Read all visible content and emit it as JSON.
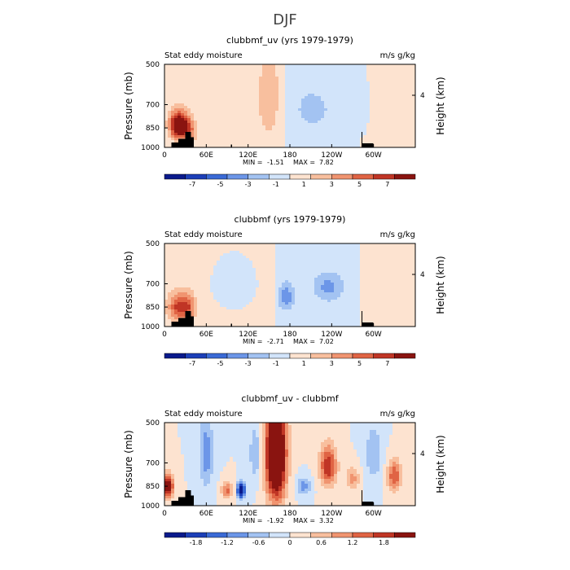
{
  "title": "DJF",
  "colors": {
    "neg": [
      "#0a1a8c",
      "#1c3fb8",
      "#3a6ad6",
      "#6c96e8",
      "#a3c3f2",
      "#d2e4fa"
    ],
    "pos": [
      "#fde3d0",
      "#f8bf9e",
      "#f09470",
      "#e06444",
      "#c03525",
      "#8a1410"
    ],
    "terrain": "#000000"
  },
  "chart_data": [
    {
      "type": "heatmap",
      "title": "clubbmf_uv (yrs 1979-1979)",
      "left_label": "Stat eddy moisture",
      "right_label": "m/s g/kg",
      "ylabel": "Pressure  (mb)",
      "ylabel_right": "Height  (km)",
      "yticks": [
        "500",
        "700",
        "850",
        "1000"
      ],
      "ytick_values": [
        500,
        700,
        850,
        1000
      ],
      "height_tick": "4",
      "xticks": [
        "0",
        "60E",
        "120E",
        "180",
        "120W",
        "60W"
      ],
      "xtick_values": [
        0,
        60,
        120,
        180,
        240,
        300
      ],
      "xlim": [
        0,
        360
      ],
      "ylim": [
        1000,
        500
      ],
      "min_label": "MIN =",
      "min_value": "-1.51",
      "max_label": "MAX =",
      "max_value": "7.82",
      "colorbar_labels": [
        "-7",
        "-5",
        "-3",
        "-1",
        "1",
        "3",
        "5",
        "7"
      ],
      "levels": [
        -8,
        -7,
        -6,
        -5,
        -4,
        -3,
        -2,
        -1,
        0,
        1,
        2,
        3,
        4,
        5,
        6,
        7,
        8
      ],
      "blobs": [
        {
          "lon": 20,
          "p": 830,
          "wl": 12,
          "wp": 90,
          "a": 7.5
        },
        {
          "lon": 35,
          "p": 870,
          "wl": 10,
          "wp": 100,
          "a": 3.0
        },
        {
          "lon": 150,
          "p": 650,
          "wl": 15,
          "wp": 250,
          "a": 1.6
        },
        {
          "lon": 100,
          "p": 700,
          "wl": 30,
          "wp": 200,
          "a": 0.7
        },
        {
          "lon": 210,
          "p": 730,
          "wl": 20,
          "wp": 100,
          "a": -1.3
        },
        {
          "lon": 265,
          "p": 700,
          "wl": 40,
          "wp": 250,
          "a": -0.6
        },
        {
          "lon": 330,
          "p": 700,
          "wl": 30,
          "wp": 200,
          "a": 0.7
        }
      ],
      "bias": 0.2,
      "neg_lon": [
        175,
        280
      ],
      "neg_val": -0.5
    },
    {
      "type": "heatmap",
      "title": "clubbmf (yrs 1979-1979)",
      "left_label": "Stat eddy moisture",
      "right_label": "m/s g/kg",
      "ylabel": "Pressure  (mb)",
      "ylabel_right": "Height  (km)",
      "yticks": [
        "500",
        "700",
        "850",
        "1000"
      ],
      "ytick_values": [
        500,
        700,
        850,
        1000
      ],
      "height_tick": "4",
      "xticks": [
        "0",
        "60E",
        "120E",
        "180",
        "120W",
        "60W"
      ],
      "xtick_values": [
        0,
        60,
        120,
        180,
        240,
        300
      ],
      "xlim": [
        0,
        360
      ],
      "ylim": [
        1000,
        500
      ],
      "min_label": "MIN =",
      "min_value": "-2.71",
      "max_label": "MAX =",
      "max_value": "7.02",
      "colorbar_labels": [
        "-7",
        "-5",
        "-3",
        "-1",
        "1",
        "3",
        "5",
        "7"
      ],
      "levels": [
        -8,
        -7,
        -6,
        -5,
        -4,
        -3,
        -2,
        -1,
        0,
        1,
        2,
        3,
        4,
        5,
        6,
        7,
        8
      ],
      "blobs": [
        {
          "lon": 20,
          "p": 850,
          "wl": 15,
          "wp": 100,
          "a": 4.0
        },
        {
          "lon": 35,
          "p": 850,
          "wl": 10,
          "wp": 100,
          "a": 2.5
        },
        {
          "lon": 175,
          "p": 780,
          "wl": 10,
          "wp": 80,
          "a": -2.5
        },
        {
          "lon": 235,
          "p": 720,
          "wl": 20,
          "wp": 80,
          "a": -2.0
        },
        {
          "lon": 100,
          "p": 700,
          "wl": 30,
          "wp": 150,
          "a": -0.7
        },
        {
          "lon": 320,
          "p": 820,
          "wl": 30,
          "wp": 150,
          "a": 0.8
        }
      ],
      "bias": 0.2,
      "neg_lon": [
        160,
        280
      ],
      "neg_val": -0.6
    },
    {
      "type": "heatmap",
      "title": "clubbmf_uv - clubbmf",
      "left_label": "Stat eddy moisture",
      "right_label": "m/s g/kg",
      "ylabel": "Pressure  (mb)",
      "ylabel_right": "Height  (km)",
      "yticks": [
        "500",
        "700",
        "850",
        "1000"
      ],
      "ytick_values": [
        500,
        700,
        850,
        1000
      ],
      "height_tick": "4",
      "xticks": [
        "0",
        "60E",
        "120E",
        "180",
        "120W",
        "60W"
      ],
      "xtick_values": [
        0,
        60,
        120,
        180,
        240,
        300
      ],
      "xlim": [
        0,
        360
      ],
      "ylim": [
        1000,
        500
      ],
      "min_label": "MIN =",
      "min_value": "-1.92",
      "max_label": "MAX =",
      "max_value": "3.32",
      "colorbar_labels": [
        "-1.8",
        "-1.2",
        "-0.6",
        "0",
        "0.6",
        "1.2",
        "1.8"
      ],
      "levels": [
        -2.4,
        -2.1,
        -1.8,
        -1.5,
        -1.2,
        -0.9,
        -0.6,
        -0.3,
        0,
        0.3,
        0.6,
        0.9,
        1.2,
        1.5,
        1.8,
        2.1,
        2.4
      ],
      "blobs": [
        {
          "lon": 160,
          "p": 650,
          "wl": 14,
          "wp": 280,
          "a": 3.0
        },
        {
          "lon": 5,
          "p": 850,
          "wl": 8,
          "wp": 80,
          "a": 2.0
        },
        {
          "lon": 235,
          "p": 720,
          "wl": 12,
          "wp": 120,
          "a": 1.5
        },
        {
          "lon": 330,
          "p": 780,
          "wl": 10,
          "wp": 100,
          "a": 1.2
        },
        {
          "lon": 90,
          "p": 880,
          "wl": 8,
          "wp": 60,
          "a": 1.0
        },
        {
          "lon": 110,
          "p": 880,
          "wl": 6,
          "wp": 60,
          "a": -1.9
        },
        {
          "lon": 60,
          "p": 650,
          "wl": 10,
          "wp": 200,
          "a": -0.8
        },
        {
          "lon": 200,
          "p": 850,
          "wl": 10,
          "wp": 60,
          "a": -0.8
        },
        {
          "lon": 130,
          "p": 650,
          "wl": 8,
          "wp": 150,
          "a": -0.6
        },
        {
          "lon": 300,
          "p": 650,
          "wl": 12,
          "wp": 150,
          "a": -0.6
        },
        {
          "lon": 270,
          "p": 800,
          "wl": 10,
          "wp": 80,
          "a": 0.7
        }
      ],
      "bias": 0,
      "neg_lon": [
        0,
        0
      ],
      "neg_val": 0
    }
  ]
}
